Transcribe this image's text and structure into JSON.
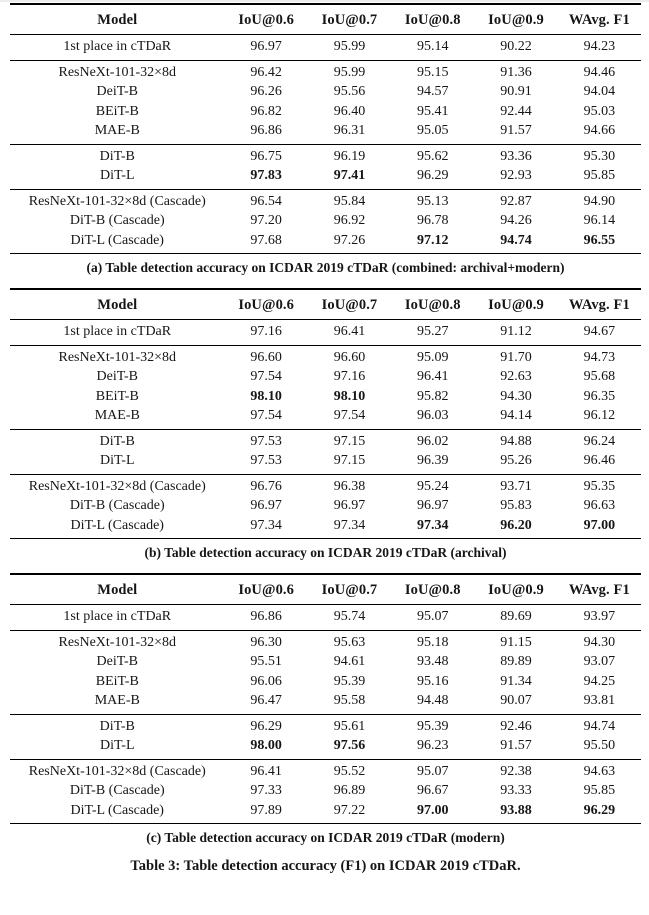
{
  "figure": {
    "main_caption": "Table 3: Table detection accuracy (F1) on ICDAR 2019 cTDaR."
  },
  "columns": [
    "Model",
    "IoU@0.6",
    "IoU@0.7",
    "IoU@0.8",
    "IoU@0.9",
    "WAvg. F1"
  ],
  "tables": [
    {
      "label": "a",
      "caption": "(a) Table detection accuracy on ICDAR 2019 cTDaR (combined: archival+modern)",
      "groups": [
        {
          "rows": [
            {
              "model": "1st place in cTDaR",
              "values": [
                "96.97",
                "95.99",
                "95.14",
                "90.22",
                "94.23"
              ],
              "bold": []
            }
          ]
        },
        {
          "rows": [
            {
              "model": "ResNeXt-101-32×8d",
              "values": [
                "96.42",
                "95.99",
                "95.15",
                "91.36",
                "94.46"
              ],
              "bold": []
            },
            {
              "model": "DeiT-B",
              "values": [
                "96.26",
                "95.56",
                "94.57",
                "90.91",
                "94.04"
              ],
              "bold": []
            },
            {
              "model": "BEiT-B",
              "values": [
                "96.82",
                "96.40",
                "95.41",
                "92.44",
                "95.03"
              ],
              "bold": []
            },
            {
              "model": "MAE-B",
              "values": [
                "96.86",
                "96.31",
                "95.05",
                "91.57",
                "94.66"
              ],
              "bold": []
            }
          ]
        },
        {
          "rows": [
            {
              "model": "DiT-B",
              "values": [
                "96.75",
                "96.19",
                "95.62",
                "93.36",
                "95.30"
              ],
              "bold": []
            },
            {
              "model": "DiT-L",
              "values": [
                "97.83",
                "97.41",
                "96.29",
                "92.93",
                "95.85"
              ],
              "bold": [
                0,
                1
              ]
            }
          ]
        },
        {
          "rows": [
            {
              "model": "ResNeXt-101-32×8d (Cascade)",
              "values": [
                "96.54",
                "95.84",
                "95.13",
                "92.87",
                "94.90"
              ],
              "bold": []
            },
            {
              "model": "DiT-B (Cascade)",
              "values": [
                "97.20",
                "96.92",
                "96.78",
                "94.26",
                "96.14"
              ],
              "bold": []
            },
            {
              "model": "DiT-L (Cascade)",
              "values": [
                "97.68",
                "97.26",
                "97.12",
                "94.74",
                "96.55"
              ],
              "bold": [
                2,
                3,
                4
              ]
            }
          ]
        }
      ]
    },
    {
      "label": "b",
      "caption": "(b) Table detection accuracy on ICDAR 2019 cTDaR (archival)",
      "groups": [
        {
          "rows": [
            {
              "model": "1st place in cTDaR",
              "values": [
                "97.16",
                "96.41",
                "95.27",
                "91.12",
                "94.67"
              ],
              "bold": []
            }
          ]
        },
        {
          "rows": [
            {
              "model": "ResNeXt-101-32×8d",
              "values": [
                "96.60",
                "96.60",
                "95.09",
                "91.70",
                "94.73"
              ],
              "bold": []
            },
            {
              "model": "DeiT-B",
              "values": [
                "97.54",
                "97.16",
                "96.41",
                "92.63",
                "95.68"
              ],
              "bold": []
            },
            {
              "model": "BEiT-B",
              "values": [
                "98.10",
                "98.10",
                "95.82",
                "94.30",
                "96.35"
              ],
              "bold": [
                0,
                1
              ]
            },
            {
              "model": "MAE-B",
              "values": [
                "97.54",
                "97.54",
                "96.03",
                "94.14",
                "96.12"
              ],
              "bold": []
            }
          ]
        },
        {
          "rows": [
            {
              "model": "DiT-B",
              "values": [
                "97.53",
                "97.15",
                "96.02",
                "94.88",
                "96.24"
              ],
              "bold": []
            },
            {
              "model": "DiT-L",
              "values": [
                "97.53",
                "97.15",
                "96.39",
                "95.26",
                "96.46"
              ],
              "bold": []
            }
          ]
        },
        {
          "rows": [
            {
              "model": "ResNeXt-101-32×8d (Cascade)",
              "values": [
                "96.76",
                "96.38",
                "95.24",
                "93.71",
                "95.35"
              ],
              "bold": []
            },
            {
              "model": "DiT-B (Cascade)",
              "values": [
                "96.97",
                "96.97",
                "96.97",
                "95.83",
                "96.63"
              ],
              "bold": []
            },
            {
              "model": "DiT-L (Cascade)",
              "values": [
                "97.34",
                "97.34",
                "97.34",
                "96.20",
                "97.00"
              ],
              "bold": [
                2,
                3,
                4
              ]
            }
          ]
        }
      ]
    },
    {
      "label": "c",
      "caption": "(c) Table detection accuracy on ICDAR 2019 cTDaR (modern)",
      "groups": [
        {
          "rows": [
            {
              "model": "1st place in cTDaR",
              "values": [
                "96.86",
                "95.74",
                "95.07",
                "89.69",
                "93.97"
              ],
              "bold": []
            }
          ]
        },
        {
          "rows": [
            {
              "model": "ResNeXt-101-32×8d",
              "values": [
                "96.30",
                "95.63",
                "95.18",
                "91.15",
                "94.30"
              ],
              "bold": []
            },
            {
              "model": "DeiT-B",
              "values": [
                "95.51",
                "94.61",
                "93.48",
                "89.89",
                "93.07"
              ],
              "bold": []
            },
            {
              "model": "BEiT-B",
              "values": [
                "96.06",
                "95.39",
                "95.16",
                "91.34",
                "94.25"
              ],
              "bold": []
            },
            {
              "model": "MAE-B",
              "values": [
                "96.47",
                "95.58",
                "94.48",
                "90.07",
                "93.81"
              ],
              "bold": []
            }
          ]
        },
        {
          "rows": [
            {
              "model": "DiT-B",
              "values": [
                "96.29",
                "95.61",
                "95.39",
                "92.46",
                "94.74"
              ],
              "bold": []
            },
            {
              "model": "DiT-L",
              "values": [
                "98.00",
                "97.56",
                "96.23",
                "91.57",
                "95.50"
              ],
              "bold": [
                0,
                1
              ]
            }
          ]
        },
        {
          "rows": [
            {
              "model": "ResNeXt-101-32×8d (Cascade)",
              "values": [
                "96.41",
                "95.52",
                "95.07",
                "92.38",
                "94.63"
              ],
              "bold": []
            },
            {
              "model": "DiT-B (Cascade)",
              "values": [
                "97.33",
                "96.89",
                "96.67",
                "93.33",
                "95.85"
              ],
              "bold": []
            },
            {
              "model": "DiT-L (Cascade)",
              "values": [
                "97.89",
                "97.22",
                "97.00",
                "93.88",
                "96.29"
              ],
              "bold": [
                2,
                3,
                4
              ]
            }
          ]
        }
      ]
    }
  ]
}
